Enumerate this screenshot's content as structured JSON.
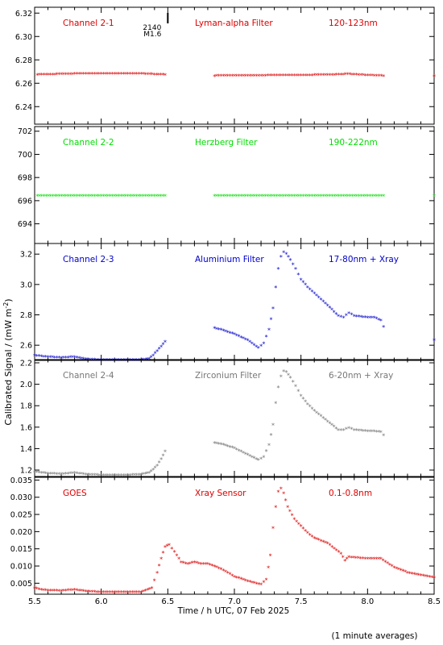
{
  "figure": {
    "xlabel": "Time / h UTC, 07 Feb 2025",
    "ylabel": "Calibrated Signal / (mW m",
    "ylabel_sup": "-2",
    "ylabel_end": ")",
    "footnote": "(1 minute averages)",
    "xlim": [
      5.5,
      8.5
    ],
    "xticks": [
      5.5,
      6.0,
      6.5,
      7.0,
      7.5,
      8.0,
      8.5
    ],
    "xtick_labels": [
      "5.5",
      "6.0",
      "6.5",
      "7.0",
      "7.5",
      "8.0",
      "8.5"
    ],
    "flare_marker": {
      "x": 6.5,
      "time_label": "2140",
      "class_label": "M1.6"
    }
  },
  "chart_data": [
    {
      "type": "scatter",
      "color": "#dd0000",
      "labels": [
        "Channel 2-1",
        "Lyman-alpha Filter",
        "120-123nm"
      ],
      "ylim": [
        6.225,
        6.325
      ],
      "yticks": [
        6.24,
        6.26,
        6.28,
        6.3,
        6.32
      ],
      "ytick_labels": [
        "6.24",
        "6.26",
        "6.28",
        "6.30",
        "6.32"
      ],
      "series": [
        {
          "x": [
            5.52,
            5.7,
            5.9,
            6.1,
            6.3,
            6.48
          ],
          "y": [
            6.267,
            6.2675,
            6.268,
            6.268,
            6.2678,
            6.267
          ]
        },
        {
          "x": [
            6.85,
            7.1,
            7.4,
            7.7,
            7.85,
            8.0,
            8.12
          ],
          "y": [
            6.266,
            6.2662,
            6.2665,
            6.2668,
            6.2675,
            6.2665,
            6.266
          ]
        },
        {
          "x": [
            8.5
          ],
          "y": [
            6.266
          ]
        }
      ]
    },
    {
      "type": "scatter",
      "color": "#00dd00",
      "labels": [
        "Channel 2-2",
        "Herzberg Filter",
        "190-222nm"
      ],
      "ylim": [
        692.3,
        702.4
      ],
      "yticks": [
        694,
        696,
        698,
        700,
        702
      ],
      "ytick_labels": [
        "694",
        "696",
        "698",
        "700",
        "702"
      ],
      "series": [
        {
          "x": [
            5.52,
            6.0,
            6.48
          ],
          "y": [
            696.4,
            696.4,
            696.4
          ]
        },
        {
          "x": [
            6.85,
            7.5,
            8.12
          ],
          "y": [
            696.4,
            696.4,
            696.4
          ]
        },
        {
          "x": [
            8.5
          ],
          "y": [
            696.4
          ]
        }
      ]
    },
    {
      "type": "scatter",
      "color": "#0000cc",
      "labels": [
        "Channel 2-3",
        "Aluminium Filter",
        "17-80nm + Xray"
      ],
      "ylim": [
        2.5,
        3.27
      ],
      "yticks": [
        2.6,
        2.8,
        3.0,
        3.2
      ],
      "ytick_labels": [
        "2.6",
        "2.8",
        "3.0",
        "3.2"
      ],
      "series": [
        {
          "x": [
            5.5,
            5.6,
            5.7,
            5.8,
            5.9,
            6.0,
            6.1,
            6.2,
            6.3,
            6.36,
            6.39,
            6.42,
            6.45,
            6.48
          ],
          "y": [
            2.53,
            2.52,
            2.515,
            2.52,
            2.505,
            2.5,
            2.5,
            2.5,
            2.5,
            2.51,
            2.53,
            2.56,
            2.59,
            2.62
          ]
        },
        {
          "x": [
            6.85,
            6.9,
            7.0,
            7.1,
            7.18,
            7.22,
            7.26,
            7.29,
            7.31,
            7.33,
            7.35,
            7.37,
            7.39,
            7.42,
            7.46,
            7.5,
            7.55,
            7.6,
            7.7,
            7.78,
            7.82,
            7.86,
            7.9,
            8.0,
            8.05,
            8.1,
            8.12
          ],
          "y": [
            2.71,
            2.7,
            2.67,
            2.63,
            2.58,
            2.61,
            2.7,
            2.84,
            2.98,
            3.1,
            3.18,
            3.21,
            3.2,
            3.16,
            3.1,
            3.03,
            2.98,
            2.94,
            2.86,
            2.79,
            2.78,
            2.81,
            2.79,
            2.78,
            2.78,
            2.76,
            2.72
          ]
        },
        {
          "x": [
            8.5
          ],
          "y": [
            2.63
          ]
        }
      ]
    },
    {
      "type": "scatter",
      "color": "#777777",
      "labels": [
        "Channel 2-4",
        "Zirconium Filter",
        "6-20nm + Xray"
      ],
      "ylim": [
        1.14,
        2.23
      ],
      "yticks": [
        1.2,
        1.4,
        1.6,
        1.8,
        2.0,
        2.2
      ],
      "ytick_labels": [
        "1.2",
        "1.4",
        "1.6",
        "1.8",
        "2.0",
        "2.2"
      ],
      "series": [
        {
          "x": [
            5.5,
            5.6,
            5.7,
            5.8,
            5.9,
            6.0,
            6.1,
            6.2,
            6.3,
            6.36,
            6.39,
            6.42,
            6.45,
            6.48
          ],
          "y": [
            1.18,
            1.165,
            1.16,
            1.17,
            1.155,
            1.15,
            1.15,
            1.15,
            1.155,
            1.17,
            1.2,
            1.24,
            1.3,
            1.37
          ]
        },
        {
          "x": [
            6.85,
            6.9,
            7.0,
            7.1,
            7.18,
            7.22,
            7.26,
            7.29,
            7.31,
            7.33,
            7.35,
            7.37,
            7.39,
            7.42,
            7.46,
            7.5,
            7.55,
            7.6,
            7.7,
            7.78,
            7.82,
            7.86,
            7.9,
            8.0,
            8.05,
            8.1,
            8.12
          ],
          "y": [
            1.45,
            1.44,
            1.4,
            1.34,
            1.29,
            1.32,
            1.43,
            1.62,
            1.82,
            1.97,
            2.07,
            2.12,
            2.11,
            2.06,
            1.98,
            1.89,
            1.81,
            1.75,
            1.65,
            1.57,
            1.57,
            1.59,
            1.57,
            1.56,
            1.56,
            1.55,
            1.52
          ]
        }
      ]
    },
    {
      "type": "scatter",
      "color": "#dd0000",
      "labels": [
        "GOES",
        "Xray Sensor",
        "0.1-0.8nm"
      ],
      "ylim": [
        0.0018,
        0.0358
      ],
      "yticks": [
        0.005,
        0.01,
        0.015,
        0.02,
        0.025,
        0.03,
        0.035
      ],
      "ytick_labels": [
        "0.005",
        "0.010",
        "0.015",
        "0.020",
        "0.025",
        "0.030",
        "0.035"
      ],
      "series": [
        {
          "x": [
            5.5,
            5.55,
            5.6,
            5.7,
            5.8,
            5.9,
            6.0,
            6.1,
            6.2,
            6.3,
            6.38,
            6.42,
            6.45,
            6.48,
            6.51,
            6.55,
            6.6,
            6.65,
            6.7,
            6.75,
            6.8,
            6.85,
            6.9,
            7.0,
            7.1,
            7.2,
            7.24,
            7.27,
            7.29,
            7.31,
            7.33,
            7.35,
            7.37,
            7.4,
            7.45,
            7.5,
            7.55,
            7.6,
            7.7,
            7.8,
            7.83,
            7.86,
            8.0,
            8.1,
            8.2,
            8.3,
            8.4,
            8.5
          ],
          "y": [
            0.0035,
            0.003,
            0.0028,
            0.0027,
            0.003,
            0.0025,
            0.0023,
            0.0023,
            0.0023,
            0.0023,
            0.0035,
            0.008,
            0.012,
            0.0155,
            0.016,
            0.014,
            0.011,
            0.0105,
            0.011,
            0.0105,
            0.0105,
            0.0098,
            0.009,
            0.0068,
            0.0055,
            0.0045,
            0.006,
            0.013,
            0.021,
            0.027,
            0.0315,
            0.0325,
            0.031,
            0.027,
            0.0235,
            0.0215,
            0.0195,
            0.018,
            0.0165,
            0.0135,
            0.0115,
            0.0125,
            0.012,
            0.012,
            0.0095,
            0.008,
            0.0072,
            0.0065
          ]
        }
      ]
    }
  ]
}
